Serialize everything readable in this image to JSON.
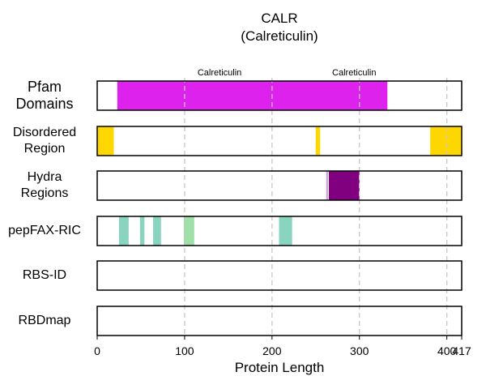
{
  "chart_data": {
    "type": "track",
    "title": "CALR",
    "subtitle": "(Calreticulin)",
    "xlabel": "Protein Length",
    "protein_length": 417,
    "xlim": [
      0,
      417
    ],
    "xticks": [
      0,
      100,
      200,
      300,
      400,
      417
    ],
    "tracks": [
      {
        "name": "Pfam\nDomains",
        "segments": [
          {
            "start": 23,
            "end": 332,
            "color": "#dd22ee",
            "label": "Calreticulin"
          }
        ],
        "annotations": [
          {
            "x": 140,
            "text": "Calreticulin"
          },
          {
            "x": 294,
            "text": "Calreticulin"
          }
        ]
      },
      {
        "name": "Disordered\nRegion",
        "segments": [
          {
            "start": 0,
            "end": 19,
            "color": "#ffd700"
          },
          {
            "start": 250,
            "end": 255,
            "color": "#ffd700"
          },
          {
            "start": 381,
            "end": 417,
            "color": "#ffd700"
          }
        ]
      },
      {
        "name": "Hydra\nRegions",
        "segments": [
          {
            "start": 262,
            "end": 264,
            "color": "#c8a2d8"
          },
          {
            "start": 265,
            "end": 300,
            "color": "#800080"
          }
        ]
      },
      {
        "name": "pepFAX-RIC",
        "segments": [
          {
            "start": 25,
            "end": 36,
            "color": "#88d4be"
          },
          {
            "start": 49,
            "end": 54,
            "color": "#88d4be"
          },
          {
            "start": 64,
            "end": 73,
            "color": "#88d4be"
          },
          {
            "start": 99,
            "end": 111,
            "color": "#9fe0a8"
          },
          {
            "start": 208,
            "end": 223,
            "color": "#88d4be"
          }
        ]
      },
      {
        "name": "RBS-ID",
        "segments": []
      },
      {
        "name": "RBDmap",
        "segments": []
      }
    ],
    "grid": true
  }
}
